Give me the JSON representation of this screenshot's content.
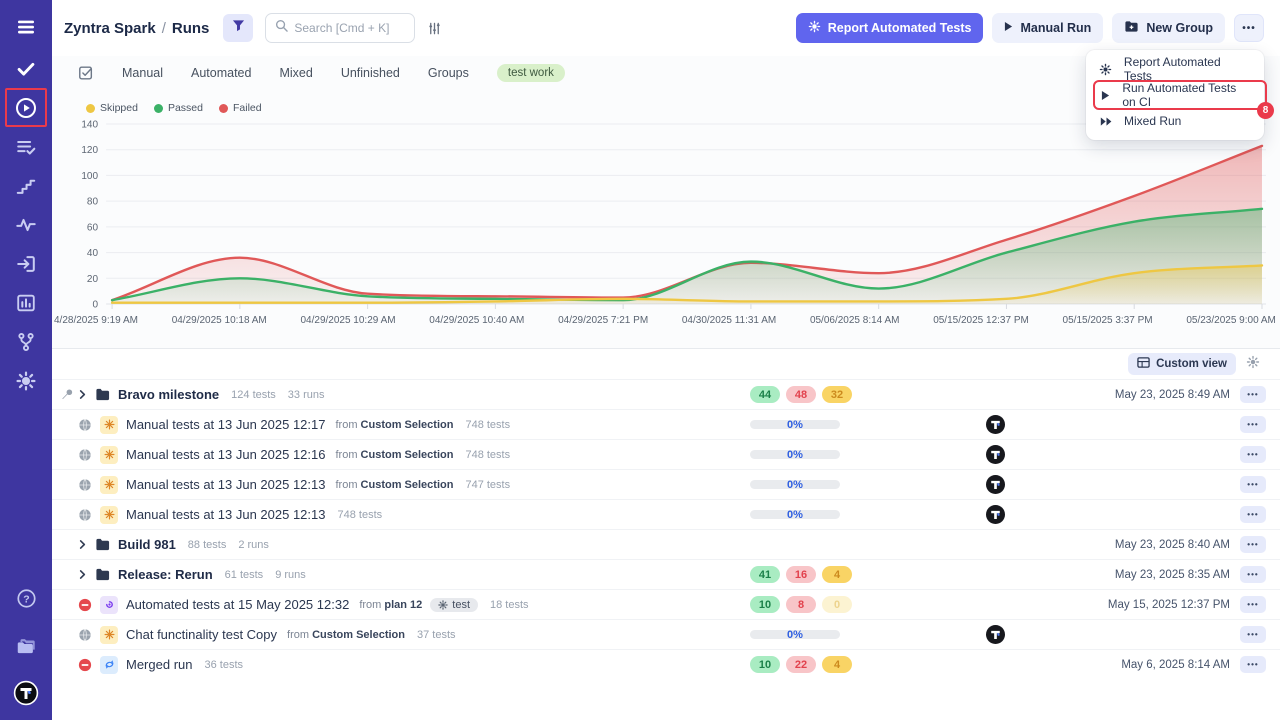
{
  "colors": {
    "accent": "#6065ee",
    "sidebar": "#3e36a0",
    "annotation": "#ea3a4b",
    "passed": "#3bb167",
    "failed": "#e05858",
    "skipped": "#eec743"
  },
  "icons": {
    "more": "•••",
    "play": "▶",
    "help": "?"
  },
  "sidebar": {
    "items": [
      {
        "name": "menu"
      },
      {
        "name": "tests"
      },
      {
        "name": "runs",
        "active": true,
        "annotated": true
      },
      {
        "name": "plans"
      },
      {
        "name": "steps"
      },
      {
        "name": "activity"
      },
      {
        "name": "import"
      },
      {
        "name": "analytics"
      },
      {
        "name": "branches"
      },
      {
        "name": "settings"
      }
    ],
    "bottom": [
      {
        "name": "help"
      },
      {
        "name": "projects"
      },
      {
        "name": "logo"
      }
    ]
  },
  "header": {
    "project": "Zyntra Spark",
    "separator": "/",
    "section": "Runs",
    "search_placeholder": "Search [Cmd + K]",
    "buttons": {
      "report": "Report Automated Tests",
      "manual_run": "Manual Run",
      "new_group": "New Group"
    }
  },
  "menu": {
    "items": [
      {
        "icon": "report",
        "label": "Report Automated Tests"
      },
      {
        "icon": "play",
        "label": "Run Automated Tests on CI",
        "highlighted": true
      },
      {
        "icon": "mixed",
        "label": "Mixed Run"
      }
    ],
    "highlight_badge": "8"
  },
  "tabs": {
    "items": [
      "Manual",
      "Automated",
      "Mixed",
      "Unfinished",
      "Groups"
    ],
    "tag": "test work"
  },
  "chart_data": {
    "type": "area",
    "title": "",
    "x_labels": [
      "4/28/2025 9:19 AM",
      "04/29/2025 10:18 AM",
      "04/29/2025 10:29 AM",
      "04/29/2025 10:40 AM",
      "04/29/2025 7:21 PM",
      "04/30/2025 11:31 AM",
      "05/06/2025 8:14 AM",
      "05/15/2025 12:37 PM",
      "05/15/2025 3:37 PM",
      "05/23/2025 9:00 AM"
    ],
    "ylim": [
      0,
      140
    ],
    "ytick_step": 20,
    "grid": true,
    "legend_position": "top-left",
    "legend": [
      {
        "label": "Skipped",
        "color": "#eec743"
      },
      {
        "label": "Passed",
        "color": "#3bb167"
      },
      {
        "label": "Failed",
        "color": "#e05858"
      }
    ],
    "series": [
      {
        "name": "Failed",
        "color": "#e05858",
        "values": [
          3,
          36,
          8,
          6,
          5,
          32,
          24,
          50,
          84,
          123
        ]
      },
      {
        "name": "Passed",
        "color": "#3bb167",
        "values": [
          3,
          20,
          6,
          4,
          3,
          33,
          12,
          40,
          64,
          74
        ]
      },
      {
        "name": "Skipped",
        "color": "#eec743",
        "values": [
          1,
          1,
          1,
          2,
          4,
          2,
          2,
          4,
          24,
          30
        ]
      }
    ]
  },
  "toolbar": {
    "custom_view": "Custom view"
  },
  "table": {
    "rows": [
      {
        "kind": "group",
        "pinned": true,
        "title": "Bravo milestone",
        "tests": "124 tests",
        "runs": "33 runs",
        "badges": {
          "passed": "44",
          "failed": "48",
          "skipped": "32"
        },
        "date": "May 23, 2025 8:49 AM"
      },
      {
        "kind": "run",
        "status": "globe",
        "icon": "spark",
        "title": "Manual tests at 13 Jun 2025 12:17",
        "from": "Custom Selection",
        "tests": "748 tests",
        "progress": "0%",
        "avatar": true
      },
      {
        "kind": "run",
        "status": "globe",
        "icon": "spark",
        "title": "Manual tests at 13 Jun 2025 12:16",
        "from": "Custom Selection",
        "tests": "748 tests",
        "progress": "0%",
        "avatar": true
      },
      {
        "kind": "run",
        "status": "globe",
        "icon": "spark",
        "title": "Manual tests at 13 Jun 2025 12:13",
        "from": "Custom Selection",
        "tests": "747 tests",
        "progress": "0%",
        "avatar": true
      },
      {
        "kind": "run",
        "status": "globe",
        "icon": "spark",
        "title": "Manual tests at 13 Jun 2025 12:13",
        "tests": "748 tests",
        "progress": "0%",
        "avatar": true
      },
      {
        "kind": "group",
        "title": "Build 981",
        "tests": "88 tests",
        "runs": "2 runs",
        "date": "May 23, 2025 8:40 AM"
      },
      {
        "kind": "group",
        "title": "Release: Rerun",
        "tests": "61 tests",
        "runs": "9 runs",
        "badges": {
          "passed": "41",
          "failed": "16",
          "skipped": "4"
        },
        "date": "May 23, 2025 8:35 AM"
      },
      {
        "kind": "run",
        "status": "blocked",
        "icon": "automated",
        "title": "Automated tests at 15 May 2025 12:32",
        "from": "plan 12",
        "tag": "test",
        "tests": "18 tests",
        "badges": {
          "passed": "10",
          "failed": "8",
          "skipped": "0",
          "skipped_faded": true
        },
        "date": "May 15, 2025 12:37 PM"
      },
      {
        "kind": "run",
        "status": "globe",
        "icon": "spark",
        "title": "Chat functinality test Copy",
        "from": "Custom Selection",
        "tests": "37 tests",
        "progress": "0%",
        "avatar": true
      },
      {
        "kind": "run",
        "status": "blocked",
        "icon": "merged",
        "title": "Merged run",
        "tests": "36 tests",
        "badges": {
          "passed": "10",
          "failed": "22",
          "skipped": "4"
        },
        "date": "May 6, 2025 8:14 AM"
      }
    ]
  }
}
